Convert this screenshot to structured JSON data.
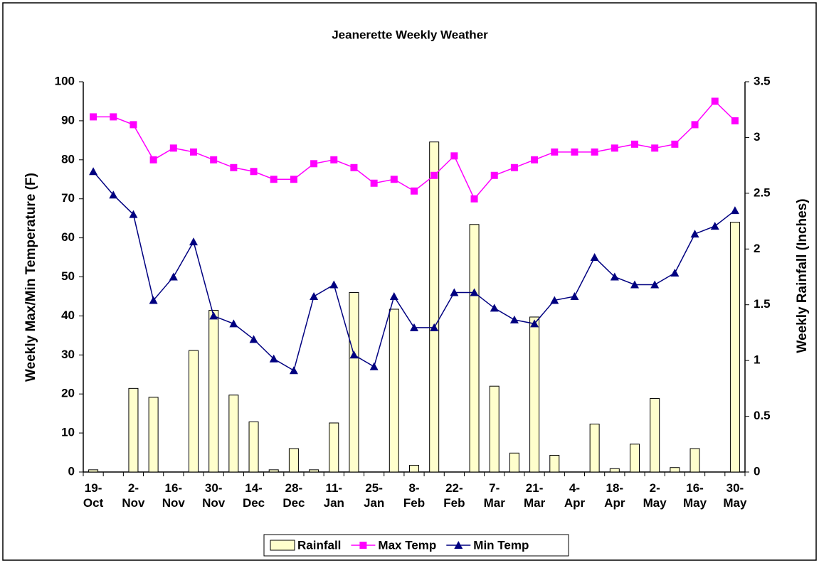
{
  "chart_data": {
    "type": "bar_line",
    "title": "Jeanerette Weekly Weather",
    "ylabel": "Weekly Max/Min Temperature (F)",
    "y2label": "Weekly Rainfall (Inches)",
    "categories": [
      "19-Oct",
      null,
      "2-Nov",
      null,
      "16-Nov",
      null,
      "30-Nov",
      null,
      "14-Dec",
      null,
      "28-Dec",
      null,
      "11-Jan",
      null,
      "25-Jan",
      null,
      "8-Feb",
      null,
      "22-Feb",
      null,
      "7-Mar",
      null,
      "21-Mar",
      null,
      "4-Apr",
      null,
      "18-Apr",
      null,
      "2-May",
      null,
      "16-May",
      null,
      "30-May"
    ],
    "series": [
      {
        "name": "Rainfall",
        "color": "#ffffcc",
        "axis": "y2",
        "kind": "bar",
        "values": [
          0.02,
          0,
          0.75,
          0.67,
          0,
          1.09,
          1.45,
          0.69,
          0.45,
          0.02,
          0.21,
          0.02,
          0.44,
          1.61,
          0,
          1.46,
          0.06,
          2.96,
          0,
          2.22,
          0.77,
          0.17,
          1.39,
          0.15,
          0,
          0.43,
          0.03,
          0.25,
          0.66,
          0.04,
          0.21,
          0,
          2.24
        ]
      },
      {
        "name": "Max Temp",
        "color": "#ff00ff",
        "kind": "line",
        "marker": "square",
        "values": [
          91,
          91,
          89,
          80,
          83,
          82,
          80,
          78,
          77,
          75,
          75,
          79,
          80,
          78,
          74,
          75,
          72,
          76,
          81,
          70,
          76,
          78,
          80,
          82,
          82,
          82,
          83,
          84,
          83,
          84,
          89,
          95,
          90
        ]
      },
      {
        "name": "Min Temp",
        "color": "#000080",
        "kind": "line",
        "marker": "triangle",
        "values": [
          77,
          71,
          66,
          44,
          50,
          59,
          40,
          38,
          34,
          29,
          26,
          45,
          48,
          30,
          27,
          45,
          37,
          37,
          46,
          46,
          42,
          39,
          38,
          44,
          45,
          55,
          50,
          48,
          48,
          51,
          61,
          63,
          67
        ]
      }
    ],
    "ylim": [
      0,
      100
    ],
    "yticks": [
      0,
      10,
      20,
      30,
      40,
      50,
      60,
      70,
      80,
      90,
      100
    ],
    "y2lim": [
      0,
      3.5
    ],
    "y2ticks": [
      0,
      0.5,
      1,
      1.5,
      2,
      2.5,
      3,
      3.5
    ],
    "grid": false,
    "legend": "bottom"
  }
}
